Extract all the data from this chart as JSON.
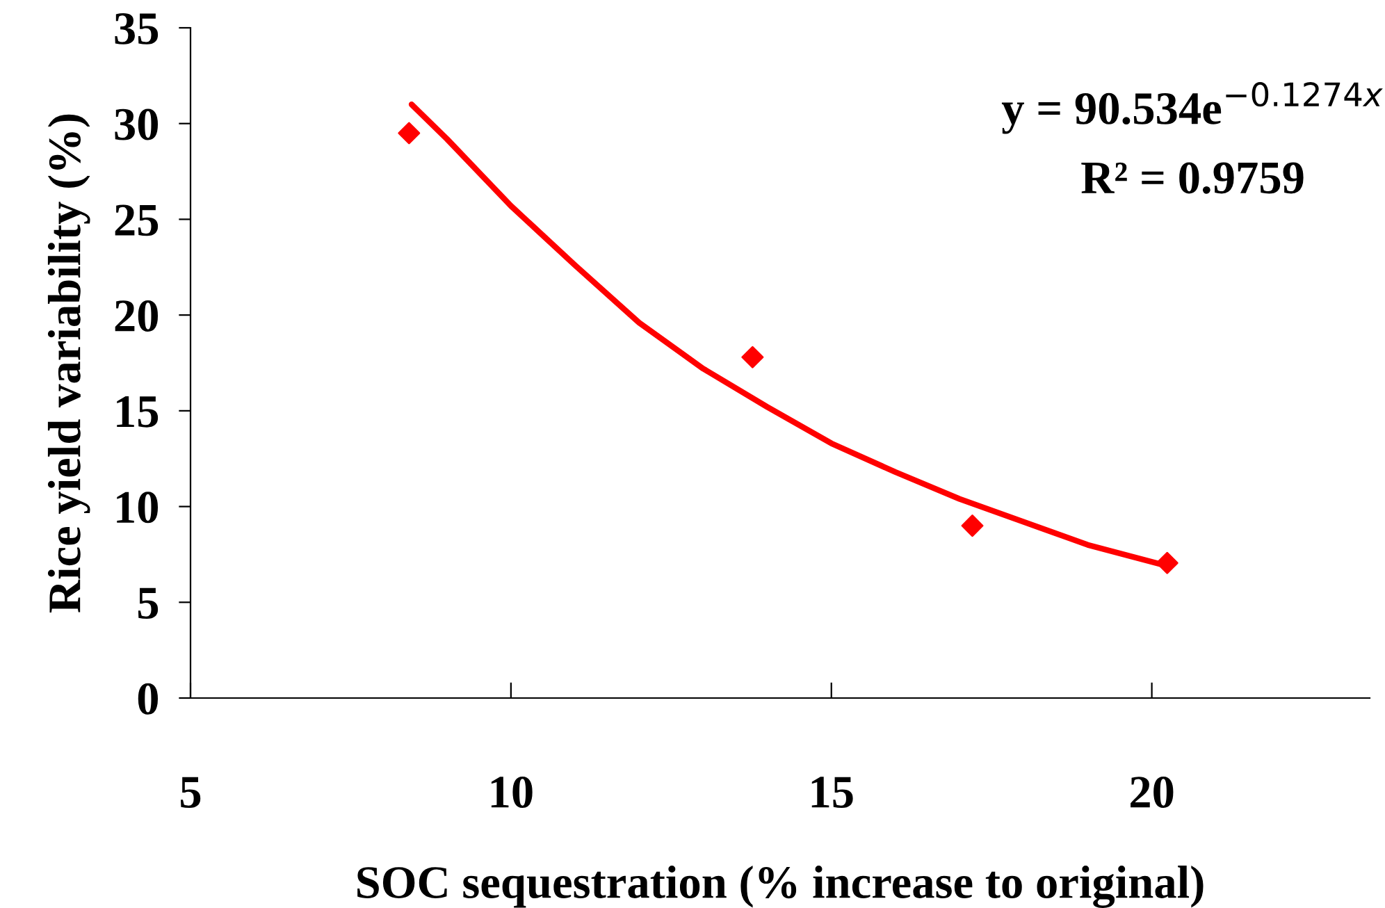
{
  "chart_data": {
    "type": "scatter",
    "xlabel": "SOC sequestration (% increase to original)",
    "ylabel": "Rice yield variability (%)",
    "xlim": [
      5,
      23.4
    ],
    "xticks": [
      5,
      10,
      15,
      20
    ],
    "ylim": [
      0,
      35
    ],
    "yticks": [
      0,
      5,
      10,
      15,
      20,
      25,
      30,
      35
    ],
    "grid": false,
    "legend": false,
    "marker": "diamond",
    "series": [
      {
        "color": "#ff0000",
        "x": [
          8.41,
          13.77,
          17.2,
          20.24
        ],
        "values": [
          29.5,
          17.8,
          9.0,
          7.05
        ]
      },
      {
        "type": "line",
        "color": "#ff0000",
        "marker": "none",
        "line_style": "solid",
        "x": [
          8.45,
          9,
          10,
          11,
          12,
          13,
          14,
          15,
          16,
          17,
          18,
          19,
          20.24
        ],
        "values": [
          31.0,
          29.2,
          25.7,
          22.6,
          19.6,
          17.2,
          15.2,
          13.3,
          11.8,
          10.4,
          9.2,
          8.0,
          6.9
        ]
      }
    ],
    "annotations": [
      "y = 90.534e$^{−0.1274x}$",
      "R² = 0.9759"
    ]
  }
}
